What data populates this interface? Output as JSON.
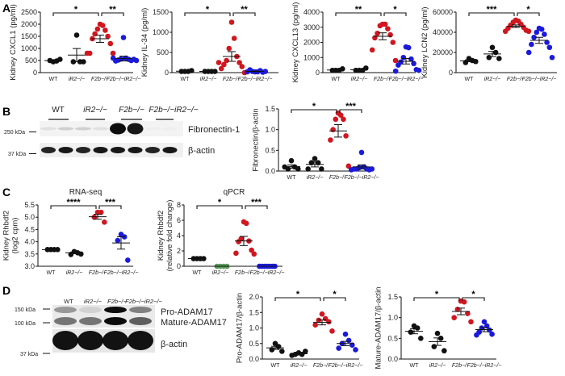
{
  "panels": {
    "a": "A",
    "b": "B",
    "c": "C",
    "d": "D"
  },
  "titles": {
    "rnaseq": "RNA-seq",
    "qpcr": "qPCR"
  },
  "colors": {
    "WT": "#111111",
    "iR2": "#111111",
    "F2b": "#d0161f",
    "DKO": "#1a1adb",
    "iR2_qpcr": "#5a9a5a"
  },
  "blots": {
    "b": {
      "lanes": [
        "WT",
        "iR2−/−",
        "F2b−/−",
        "F2b−/−iR2−/−"
      ],
      "markers": [
        "250 kDa",
        "37 kDa"
      ],
      "bands": [
        "Fibronectin-1",
        "β-actin"
      ]
    },
    "d": {
      "lanes": [
        "WT",
        "iR2−/−",
        "F2b−/−",
        "F2b−/−iR2−/−"
      ],
      "markers": [
        "150 kDa",
        "100 kDa",
        "37 kDa"
      ],
      "bands": [
        "Pro-ADAM17",
        "Mature-ADAM17",
        "β-actin"
      ]
    }
  },
  "chart_data": [
    {
      "id": "A1",
      "type": "scatter",
      "ylabel": [
        "Kidney CXCL1 (pg/ml)"
      ],
      "ylim": [
        0,
        2500
      ],
      "ticks": [
        0,
        500,
        1000,
        1500,
        2000,
        2500
      ],
      "categories": [
        "WT",
        "iR2−/−",
        "F2b−/−",
        "F2b−/−iR2−/−"
      ],
      "groups": [
        [
          450,
          480,
          500,
          550
        ],
        [
          1550,
          450,
          450,
          450
        ],
        [
          2000,
          1950,
          1800,
          1750,
          1600,
          1500,
          1400,
          1200,
          800,
          800,
          800
        ],
        [
          1450,
          600,
          560,
          550,
          520,
          500,
          480,
          550,
          600,
          500
        ]
      ],
      "mean": [
        495,
        725,
        1400,
        580
      ],
      "sem": [
        25,
        270,
        150,
        100
      ],
      "significance": [
        {
          "from": 0,
          "to": 2,
          "label": "*"
        },
        {
          "from": 2,
          "to": 3,
          "label": "**"
        }
      ]
    },
    {
      "id": "A2",
      "type": "scatter",
      "ylabel": [
        "Kidney IL-34 (pg/ml)"
      ],
      "ylim": [
        0,
        1500
      ],
      "ticks": [
        0,
        500,
        1000,
        1500
      ],
      "categories": [
        "WT",
        "iR2−/−",
        "F2b−/−",
        "F2b−/−iR2−/−"
      ],
      "groups": [
        [
          30,
          30,
          30,
          50
        ],
        [
          30,
          30,
          30,
          30
        ],
        [
          1250,
          850,
          600,
          400,
          300,
          250,
          200,
          150,
          100,
          0,
          250
        ],
        [
          20,
          20,
          30,
          50,
          70,
          10,
          20,
          30
        ]
      ],
      "mean": [
        35,
        30,
        400,
        30
      ],
      "sem": [
        5,
        2,
        120,
        8
      ],
      "significance": [
        {
          "from": 0,
          "to": 2,
          "label": "*"
        },
        {
          "from": 2,
          "to": 3,
          "label": "**"
        }
      ]
    },
    {
      "id": "A3",
      "type": "scatter",
      "ylabel": [
        "Kidney CXCL13 (pg/ml)"
      ],
      "ylim": [
        0,
        4000
      ],
      "ticks": [
        0,
        1000,
        2000,
        3000,
        4000
      ],
      "categories": [
        "WT",
        "iR2−/−",
        "F2b−/−",
        "F2b−/−iR2−/−"
      ],
      "groups": [
        [
          150,
          150,
          150,
          250
        ],
        [
          150,
          150,
          150,
          300
        ],
        [
          3200,
          3200,
          3100,
          2900,
          2600,
          2500,
          2300,
          2000,
          1500,
          800
        ],
        [
          1700,
          1650,
          1000,
          900,
          700,
          600,
          500,
          200,
          100,
          150
        ]
      ],
      "mean": [
        175,
        190,
        2400,
        750
      ],
      "sem": [
        25,
        40,
        230,
        180
      ],
      "significance": [
        {
          "from": 0,
          "to": 2,
          "label": "**"
        },
        {
          "from": 2,
          "to": 3,
          "label": "*"
        }
      ]
    },
    {
      "id": "A4",
      "type": "scatter",
      "ylabel": [
        "Kidney LCN2 (pg/ml)"
      ],
      "ylim": [
        0,
        60000
      ],
      "ticks": [
        0,
        20000,
        40000,
        60000
      ],
      "categories": [
        "WT",
        "iR2−/−",
        "F2b−/−",
        "F2b−/−iR2−/−"
      ],
      "groups": [
        [
          14000,
          12000,
          10000,
          11000
        ],
        [
          25000,
          20000,
          15000,
          14000
        ],
        [
          52000,
          51000,
          50000,
          48000,
          47000,
          45000,
          44000,
          42000,
          41000,
          41000
        ],
        [
          44000,
          43000,
          40000,
          38000,
          35000,
          30000,
          28000,
          25000,
          20000,
          15000
        ]
      ],
      "mean": [
        11750,
        18500,
        46000,
        32000
      ],
      "sem": [
        900,
        2600,
        1300,
        3000
      ],
      "significance": [
        {
          "from": 0,
          "to": 2,
          "label": "***"
        },
        {
          "from": 2,
          "to": 3,
          "label": "*"
        }
      ]
    },
    {
      "id": "B",
      "type": "scatter",
      "ylabel": [
        "Fibronectin/β-actin"
      ],
      "ylim": [
        0,
        1.5
      ],
      "ticks": [
        "0.0",
        "0.5",
        "1.0",
        "1.5"
      ],
      "categories": [
        "WT",
        "iR2−/−",
        "F2b−/−",
        "F2b−/−iR2−/−"
      ],
      "groups": [
        [
          0.25,
          0.1,
          0.05,
          0.05,
          0.1
        ],
        [
          0.3,
          0.2,
          0.2,
          0.05,
          0.05
        ],
        [
          1.4,
          1.35,
          1.25,
          1.25,
          1.0,
          0.85,
          0.75,
          0.12
        ],
        [
          0.45,
          0.1,
          0.08,
          0.05,
          0.05,
          0.03,
          0.05,
          0.05,
          0.03
        ]
      ],
      "mean": [
        0.11,
        0.16,
        0.97,
        0.1
      ],
      "sem": [
        0.04,
        0.06,
        0.15,
        0.05
      ],
      "significance": [
        {
          "from": 0,
          "to": 2,
          "label": "*"
        },
        {
          "from": 2,
          "to": 3,
          "label": "***"
        }
      ]
    },
    {
      "id": "C1",
      "type": "scatter",
      "ylabel": [
        "Kidney Rhbdf2",
        "(log2 cpm)"
      ],
      "ylim": [
        3.0,
        5.5
      ],
      "ticks": [
        "3.0",
        "3.5",
        "4.0",
        "4.5",
        "5.0",
        "5.5"
      ],
      "categories": [
        "WT",
        "iR2−/−",
        "F2b−/−",
        "F2b−/−iR2−/−"
      ],
      "groups": [
        [
          3.68,
          3.68,
          3.68,
          3.68
        ],
        [
          3.6,
          3.55,
          3.48,
          3.5
        ],
        [
          5.2,
          5.2,
          5.0,
          4.8
        ],
        [
          4.3,
          4.2,
          4.05,
          3.25
        ]
      ],
      "mean": [
        3.68,
        3.55,
        5.02,
        3.95
      ],
      "sem": [
        0,
        0.03,
        0.1,
        0.25
      ],
      "significance": [
        {
          "from": 0,
          "to": 2,
          "label": "****"
        },
        {
          "from": 2,
          "to": 3,
          "label": "***"
        }
      ]
    },
    {
      "id": "C2",
      "type": "scatter",
      "ylabel": [
        "Kidney Rhbdf2",
        "(relative fold change)"
      ],
      "ylim": [
        0,
        8
      ],
      "ticks": [
        0,
        2,
        4,
        6,
        8
      ],
      "categories": [
        "WT",
        "iR2−/−",
        "F2b−/−",
        "F2b−/−iR2−/−"
      ],
      "groups": [
        [
          1,
          1,
          1,
          1
        ],
        [
          0,
          0,
          0,
          0
        ],
        [
          5.8,
          5.6,
          3.6,
          3.3,
          3.2,
          2.1,
          1.7,
          1.6
        ],
        [
          0,
          0,
          0,
          0,
          0,
          0,
          0
        ]
      ],
      "mean": [
        1,
        0,
        3.3,
        0
      ],
      "sem": [
        0,
        0,
        0.6,
        0
      ],
      "significance": [
        {
          "from": 0,
          "to": 2,
          "label": "*"
        },
        {
          "from": 2,
          "to": 3,
          "label": "***"
        }
      ]
    },
    {
      "id": "D1",
      "type": "scatter",
      "ylabel": [
        "Pro-ADAM17/β-actin"
      ],
      "ylim": [
        0,
        2.0
      ],
      "ticks": [
        "0.0",
        "0.5",
        "1.0",
        "1.5",
        "2.0"
      ],
      "categories": [
        "WT",
        "iR2−/−",
        "F2b−/−",
        "F2b−/−iR2−/−"
      ],
      "groups": [
        [
          0.5,
          0.4,
          0.3,
          0.25
        ],
        [
          0.2,
          0.15,
          0.15,
          0.25,
          0.12
        ],
        [
          1.45,
          1.3,
          1.25,
          1.2,
          1.1,
          0.9
        ],
        [
          0.8,
          0.6,
          0.5,
          0.45,
          0.35,
          0.3
        ]
      ],
      "mean": [
        0.36,
        0.17,
        1.18,
        0.5
      ],
      "sem": [
        0.05,
        0.02,
        0.08,
        0.07
      ],
      "significance": [
        {
          "from": 0,
          "to": 2,
          "label": "*"
        },
        {
          "from": 2,
          "to": 3,
          "label": "*"
        }
      ]
    },
    {
      "id": "D2",
      "type": "scatter",
      "ylabel": [
        "Mature-ADAM17/β-actin"
      ],
      "ylim": [
        0,
        1.5
      ],
      "ticks": [
        "0.0",
        "0.5",
        "1.0",
        "1.5"
      ],
      "categories": [
        "WT",
        "iR2−/−",
        "F2b−/−",
        "F2b−/−iR2−/−"
      ],
      "groups": [
        [
          0.8,
          0.75,
          0.65,
          0.5
        ],
        [
          0.62,
          0.5,
          0.3,
          0.2
        ],
        [
          1.4,
          1.38,
          1.2,
          1.1,
          1.0,
          0.9
        ],
        [
          0.9,
          0.8,
          0.75,
          0.7,
          0.65,
          0.6,
          0.58
        ]
      ],
      "mean": [
        0.67,
        0.42,
        1.15,
        0.71
      ],
      "sem": [
        0.06,
        0.09,
        0.08,
        0.05
      ],
      "significance": [
        {
          "from": 0,
          "to": 2,
          "label": "*"
        },
        {
          "from": 2,
          "to": 3,
          "label": "*"
        }
      ]
    }
  ]
}
